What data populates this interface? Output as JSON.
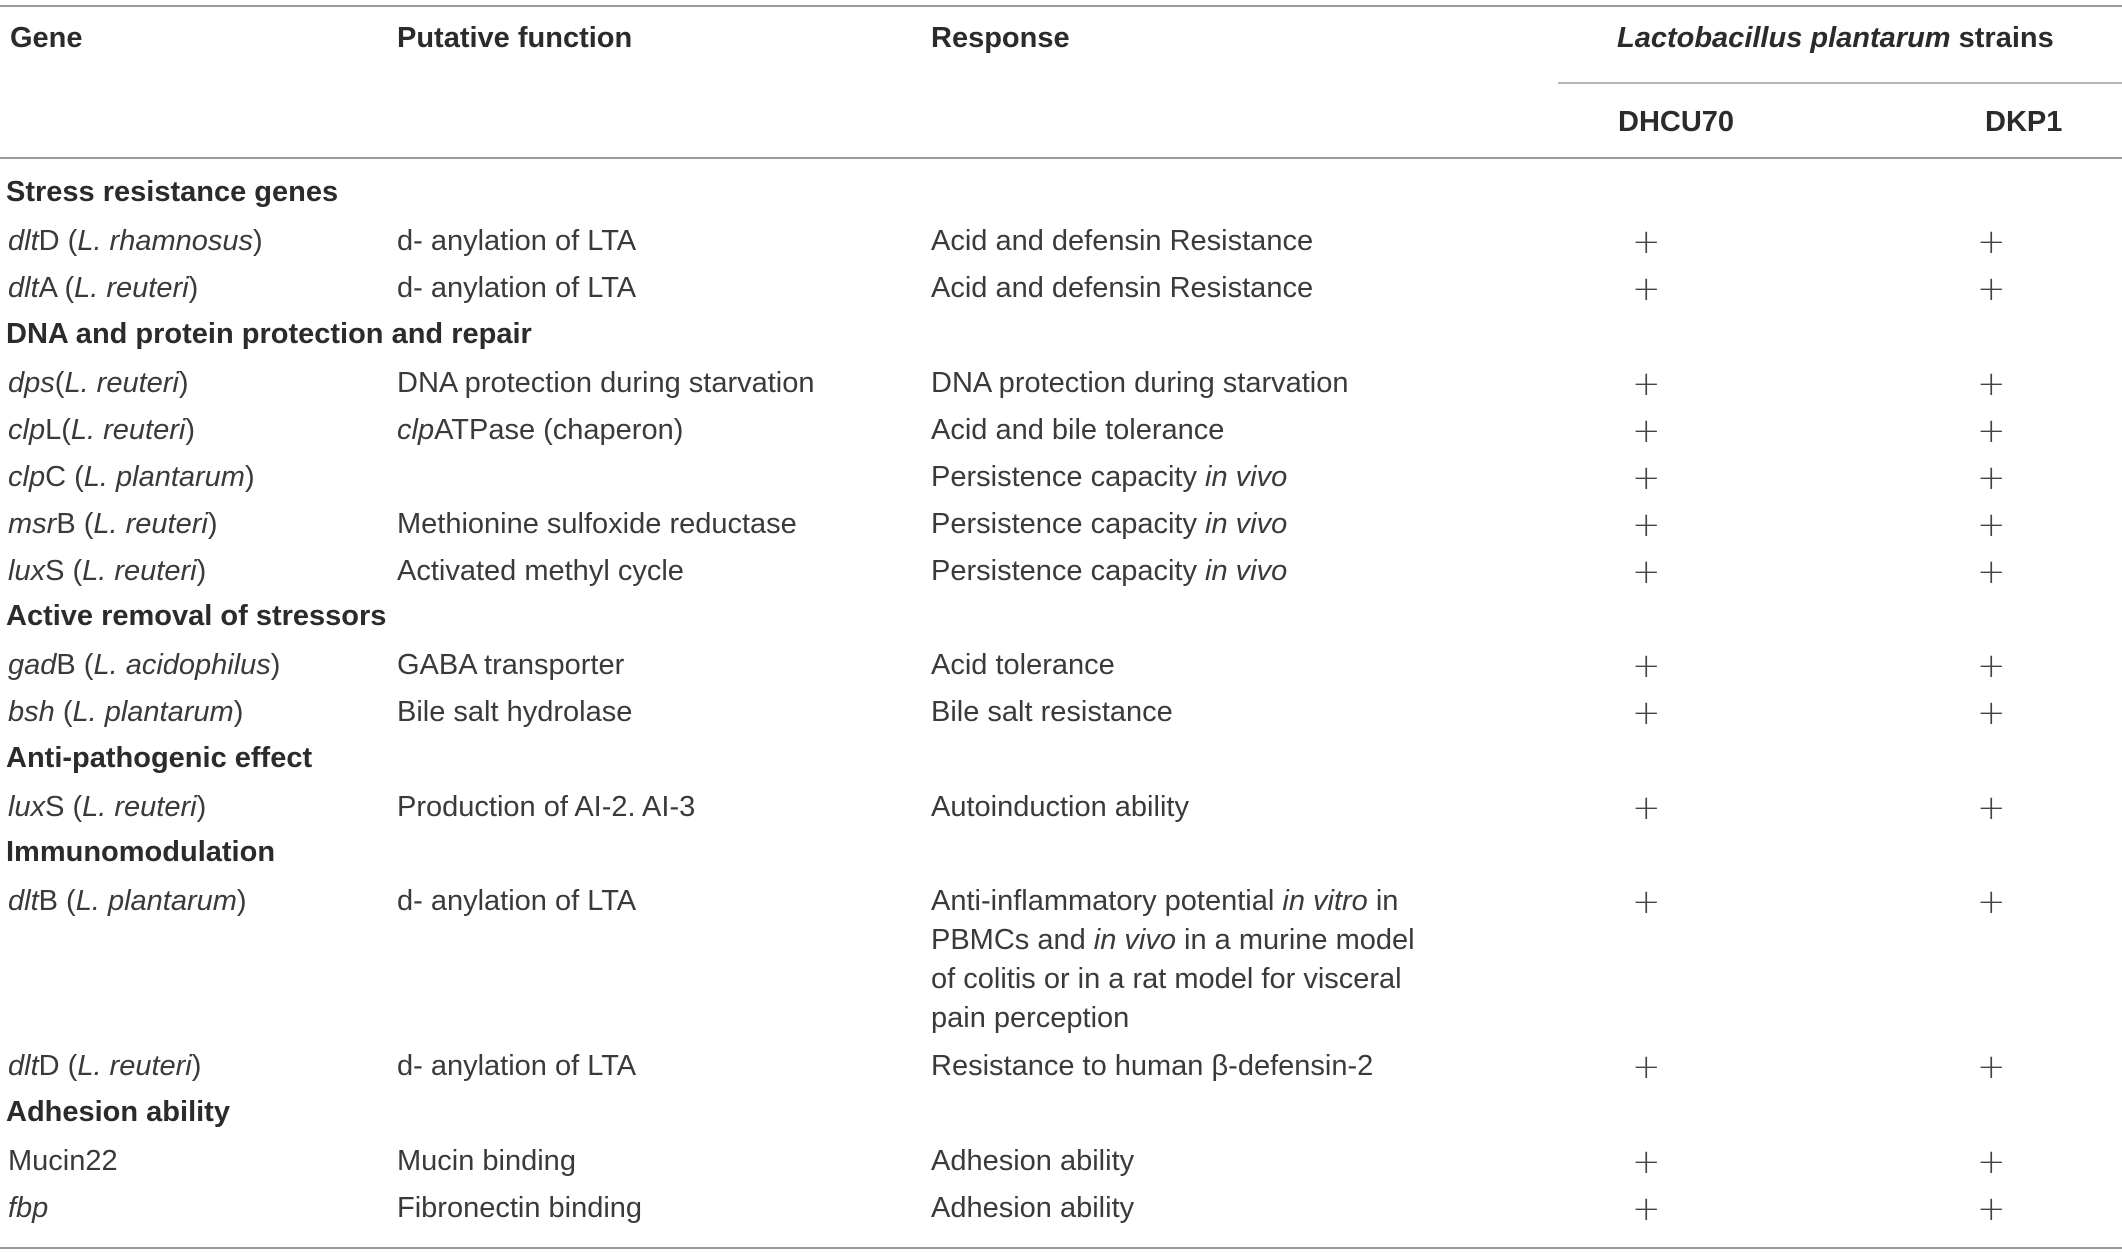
{
  "headers": {
    "gene": "Gene",
    "function": "Putative function",
    "response": "Response",
    "strains_italic": "Lactobacillus plantarum",
    "strains_suffix": " strains",
    "strain1": "DHCU70",
    "strain2": "DKP1"
  },
  "sections": [
    {
      "title": "Stress resistance genes"
    },
    {
      "title": "DNA and protein protection and repair"
    },
    {
      "title": "Active removal of stressors"
    },
    {
      "title": "Anti-pathogenic effect"
    },
    {
      "title": "Immunomodulation"
    },
    {
      "title": "Adhesion ability"
    }
  ],
  "rows": [
    {
      "gene_i": "dlt",
      "gene_r": "D (",
      "org": "L. rhamnosus",
      "close": ")",
      "function": "d- anylation of LTA",
      "response": "Acid and defensin Resistance",
      "s1": "+",
      "s2": "+"
    },
    {
      "gene_i": "dlt",
      "gene_r": "A (",
      "org": "L. reuteri",
      "close": ")",
      "function": "d- anylation of LTA",
      "response": "Acid and defensin Resistance",
      "s1": "+",
      "s2": "+"
    },
    {
      "gene_i": "dps",
      "gene_r": "(",
      "org": "L. reuteri",
      "close": ")",
      "function": "DNA protection during starvation",
      "response": "DNA protection during starvation",
      "s1": "+",
      "s2": "+"
    },
    {
      "gene_i": "clp",
      "gene_r": "L(",
      "org": "L. reuteri",
      "close": ")",
      "function_i": "clp",
      "function": "ATPase (chaperon)",
      "response": "Acid and bile tolerance",
      "s1": "+",
      "s2": "+"
    },
    {
      "gene_i": "clp",
      "gene_r": "C (",
      "org": "L. plantarum",
      "close": ")",
      "function": "",
      "response": "Persistence capacity ",
      "response_i": "in vivo",
      "s1": "+",
      "s2": "+"
    },
    {
      "gene_i": "msr",
      "gene_r": "B (",
      "org": "L. reuteri",
      "close": ")",
      "function": "Methionine sulfoxide reductase",
      "response": "Persistence capacity ",
      "response_i": "in vivo",
      "s1": "+",
      "s2": "+"
    },
    {
      "gene_i": "lux",
      "gene_r": "S (",
      "org": "L. reuteri",
      "close": ")",
      "function": "Activated methyl cycle",
      "response": "Persistence capacity ",
      "response_i": "in vivo",
      "s1": "+",
      "s2": "+"
    },
    {
      "gene_i": "gad",
      "gene_r": "B (",
      "org": "L. acidophilus",
      "close": ")",
      "function": "GABA transporter",
      "response": "Acid tolerance",
      "s1": "+",
      "s2": "+"
    },
    {
      "gene_i": "bsh",
      "gene_r": " (",
      "org": "L. plantarum",
      "close": ")",
      "function": "Bile salt hydrolase",
      "response": "Bile salt resistance",
      "s1": "+",
      "s2": "+"
    },
    {
      "gene_i": "lux",
      "gene_r": "S (",
      "org": "L. reuteri",
      "close": ")",
      "function": "Production of AI-2. AI-3",
      "response": "Autoinduction ability",
      "s1": "+",
      "s2": "+"
    },
    {
      "gene_i": "dlt",
      "gene_r": "B (",
      "org": "L. plantarum",
      "close": ")",
      "function": "d- anylation of LTA",
      "response_lines": [
        {
          "a": "Anti-inflammatory potential ",
          "b": "in vitro",
          "c": " in"
        },
        {
          "a": "PBMCs and ",
          "b": "in vivo",
          "c": " in a murine model"
        },
        {
          "a": "of colitis or in a rat model for visceral",
          "b": "",
          "c": ""
        },
        {
          "a": "pain perception",
          "b": "",
          "c": ""
        }
      ],
      "s1": "+",
      "s2": "+"
    },
    {
      "gene_i": "dlt",
      "gene_r": "D (",
      "org": "L. reuteri",
      "close": ")",
      "function": "d- anylation of LTA",
      "response": "Resistance to human β-defensin-2",
      "s1": "+",
      "s2": "+"
    },
    {
      "gene_plain": "Mucin22",
      "function": "Mucin binding",
      "response": "Adhesion ability",
      "s1": "+",
      "s2": "+"
    },
    {
      "gene_i": "fbp",
      "function": "Fibronectin binding",
      "response": "Adhesion ability",
      "s1": "+",
      "s2": "+"
    }
  ]
}
